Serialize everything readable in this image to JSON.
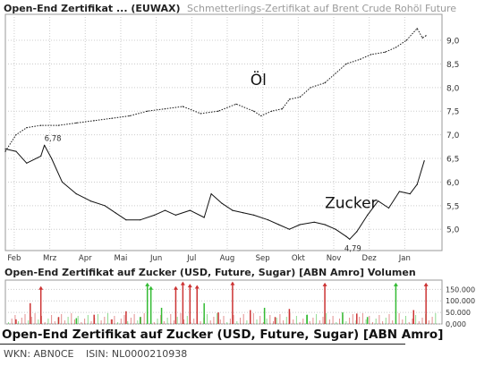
{
  "header": {
    "title": "Open-End Zertifikat ... (EUWAX)",
    "subtitle": "Schmetterlings-Zertifikat auf Brent Crude Rohöl Future"
  },
  "volume_panel": {
    "title": "Open-End Zertifikat auf Zucker (USD, Future, Sugar) [ABN Amro] Volumen"
  },
  "footer": {
    "title": "Open-End Zertifikat auf Zucker (USD, Future, Sugar) [ABN Amro]",
    "wkn": "WKN: ABN0CE",
    "isin": "ISIN: NL0000210938"
  },
  "colors": {
    "line": "#111111",
    "grid": "#cccccc",
    "volume_up": "#33bb33",
    "volume_down": "#cc3333",
    "volume_neutral": "#999999"
  },
  "chart_data": [
    {
      "type": "line",
      "title": "",
      "x_ticks": [
        "Feb",
        "Mrz",
        "Apr",
        "Mai",
        "Jun",
        "Jul",
        "Aug",
        "Sep",
        "Okt",
        "Nov",
        "Dez",
        "Jan"
      ],
      "y_ticks": [
        "5,0",
        "5,5",
        "6,0",
        "6,5",
        "7,0",
        "7,5",
        "8,0",
        "8,5",
        "9,0"
      ],
      "ylim": [
        4.55,
        9.55
      ],
      "xlim": [
        0,
        12.3
      ],
      "grid": true,
      "annotations": [
        {
          "text": "6,78",
          "x": 1.1,
          "y": 6.78
        },
        {
          "text": "4,79",
          "x": 9.7,
          "y": 4.79
        }
      ],
      "series": [
        {
          "name": "Öl",
          "style": "dotted",
          "x": [
            0,
            0.3,
            0.6,
            1.0,
            1.5,
            2.0,
            2.5,
            3.0,
            3.5,
            4.0,
            4.5,
            5.0,
            5.5,
            6.0,
            6.5,
            7.0,
            7.2,
            7.5,
            7.8,
            8.0,
            8.3,
            8.6,
            9.0,
            9.3,
            9.6,
            10.0,
            10.3,
            10.7,
            11.0,
            11.3,
            11.6,
            11.75,
            11.85
          ],
          "y": [
            6.65,
            7.0,
            7.15,
            7.2,
            7.2,
            7.25,
            7.3,
            7.35,
            7.4,
            7.5,
            7.55,
            7.6,
            7.45,
            7.5,
            7.65,
            7.5,
            7.4,
            7.5,
            7.55,
            7.75,
            7.8,
            8.0,
            8.1,
            8.3,
            8.5,
            8.6,
            8.7,
            8.75,
            8.85,
            9.0,
            9.25,
            9.05,
            9.1
          ]
        },
        {
          "name": "Zucker",
          "style": "solid",
          "x": [
            0,
            0.3,
            0.6,
            1.0,
            1.1,
            1.3,
            1.6,
            2.0,
            2.4,
            2.8,
            3.1,
            3.4,
            3.8,
            4.2,
            4.5,
            4.8,
            5.2,
            5.6,
            5.8,
            6.1,
            6.4,
            6.7,
            7.0,
            7.4,
            7.7,
            8.0,
            8.3,
            8.7,
            9.0,
            9.3,
            9.6,
            9.7,
            9.9,
            10.2,
            10.5,
            10.8,
            11.1,
            11.4,
            11.6,
            11.8
          ],
          "y": [
            6.7,
            6.65,
            6.4,
            6.55,
            6.78,
            6.5,
            6.0,
            5.75,
            5.6,
            5.5,
            5.35,
            5.2,
            5.2,
            5.3,
            5.4,
            5.3,
            5.4,
            5.25,
            5.75,
            5.55,
            5.4,
            5.35,
            5.3,
            5.2,
            5.1,
            5.0,
            5.1,
            5.15,
            5.1,
            5.0,
            4.85,
            4.79,
            4.95,
            5.3,
            5.6,
            5.45,
            5.8,
            5.75,
            5.95,
            6.45
          ]
        }
      ]
    },
    {
      "type": "bar",
      "title": "Open-End Zertifikat auf Zucker (USD, Future, Sugar) [ABN Amro] Volumen",
      "y_ticks": [
        "150.000",
        "100.000",
        "50.000",
        "0,000"
      ],
      "ylim": [
        0,
        190000
      ],
      "xlim": [
        0,
        12.3
      ],
      "bars": [
        {
          "x": 0.3,
          "v": 20000,
          "d": "down"
        },
        {
          "x": 0.7,
          "v": 90000,
          "d": "down"
        },
        {
          "x": 1.0,
          "v": 160000,
          "d": "down"
        },
        {
          "x": 1.5,
          "v": 30000,
          "d": "down"
        },
        {
          "x": 2.0,
          "v": 25000,
          "d": "up"
        },
        {
          "x": 2.5,
          "v": 40000,
          "d": "down"
        },
        {
          "x": 3.0,
          "v": 20000,
          "d": "down"
        },
        {
          "x": 3.4,
          "v": 55000,
          "d": "down"
        },
        {
          "x": 3.8,
          "v": 30000,
          "d": "up"
        },
        {
          "x": 4.0,
          "v": 175000,
          "d": "up"
        },
        {
          "x": 4.1,
          "v": 160000,
          "d": "up"
        },
        {
          "x": 4.4,
          "v": 70000,
          "d": "up"
        },
        {
          "x": 4.8,
          "v": 160000,
          "d": "down"
        },
        {
          "x": 5.0,
          "v": 180000,
          "d": "down"
        },
        {
          "x": 5.2,
          "v": 170000,
          "d": "down"
        },
        {
          "x": 5.4,
          "v": 165000,
          "d": "down"
        },
        {
          "x": 5.6,
          "v": 90000,
          "d": "up"
        },
        {
          "x": 6.0,
          "v": 50000,
          "d": "down"
        },
        {
          "x": 6.4,
          "v": 180000,
          "d": "down"
        },
        {
          "x": 6.9,
          "v": 60000,
          "d": "down"
        },
        {
          "x": 7.3,
          "v": 70000,
          "d": "up"
        },
        {
          "x": 7.6,
          "v": 30000,
          "d": "down"
        },
        {
          "x": 8.0,
          "v": 65000,
          "d": "down"
        },
        {
          "x": 8.5,
          "v": 40000,
          "d": "up"
        },
        {
          "x": 9.0,
          "v": 175000,
          "d": "down"
        },
        {
          "x": 9.5,
          "v": 50000,
          "d": "up"
        },
        {
          "x": 9.9,
          "v": 45000,
          "d": "down"
        },
        {
          "x": 10.2,
          "v": 30000,
          "d": "up"
        },
        {
          "x": 11.0,
          "v": 175000,
          "d": "up"
        },
        {
          "x": 11.5,
          "v": 60000,
          "d": "down"
        },
        {
          "x": 11.85,
          "v": 175000,
          "d": "down"
        }
      ]
    }
  ]
}
